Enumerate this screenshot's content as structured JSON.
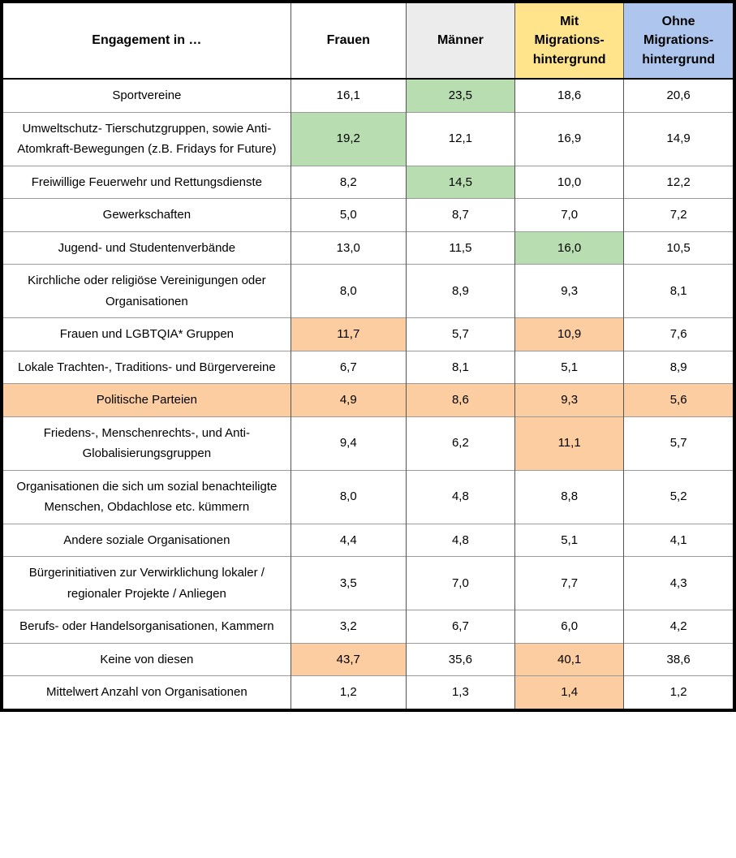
{
  "title": "Engagement in …",
  "colors": {
    "header_gray": "#ececec",
    "header_yellow": "#ffe48c",
    "header_blue": "#aec6ed",
    "highlight_green": "#b8ddb0",
    "highlight_orange": "#fbcda0",
    "border_outer": "#000000",
    "border_vertical": "#545454",
    "border_horizontal": "#9b9b9b"
  },
  "table": {
    "headers": [
      {
        "id": "engagement",
        "label": "Engagement in …",
        "bg": "#ffffff"
      },
      {
        "id": "frauen",
        "label": "Frauen",
        "bg": "#ffffff"
      },
      {
        "id": "maenner",
        "label": "Männer",
        "bg": "#ececec"
      },
      {
        "id": "mit-migrationshintergrund",
        "label": "Mit\nMigrations-\nhintergrund",
        "bg": "#ffe48c"
      },
      {
        "id": "ohne-migrationshintergrund",
        "label": "Ohne\nMigrations-\nhintergrund",
        "bg": "#aec6ed"
      }
    ]
  },
  "chart_data": {
    "type": "table",
    "title": "Engagement in …",
    "columns": [
      "Frauen",
      "Männer",
      "Mit Migrationshintergrund",
      "Ohne Migrationshintergrund"
    ],
    "highlight_colors": {
      "green": "#b8ddb0",
      "orange": "#fbcda0"
    },
    "rows": [
      {
        "label": "Sportvereine",
        "values": [
          "16,1",
          "23,5",
          "18,6",
          "20,6"
        ],
        "label_highlight": "",
        "value_highlights": [
          "",
          "green",
          "",
          ""
        ]
      },
      {
        "label": "Umweltschutz- Tierschutzgruppen, sowie Anti-Atomkraft-Bewegungen (z.B. Fridays for Future)",
        "values": [
          "19,2",
          "12,1",
          "16,9",
          "14,9"
        ],
        "label_highlight": "",
        "value_highlights": [
          "green",
          "",
          "",
          ""
        ]
      },
      {
        "label": "Freiwillige Feuerwehr und Rettungsdienste",
        "values": [
          "8,2",
          "14,5",
          "10,0",
          "12,2"
        ],
        "label_highlight": "",
        "value_highlights": [
          "",
          "green",
          "",
          ""
        ]
      },
      {
        "label": "Gewerkschaften",
        "values": [
          "5,0",
          "8,7",
          "7,0",
          "7,2"
        ],
        "label_highlight": "",
        "value_highlights": [
          "",
          "",
          "",
          ""
        ]
      },
      {
        "label": "Jugend- und Studentenverbände",
        "values": [
          "13,0",
          "11,5",
          "16,0",
          "10,5"
        ],
        "label_highlight": "",
        "value_highlights": [
          "",
          "",
          "green",
          ""
        ]
      },
      {
        "label": "Kirchliche oder religiöse Vereinigungen oder Organisationen",
        "values": [
          "8,0",
          "8,9",
          "9,3",
          "8,1"
        ],
        "label_highlight": "",
        "value_highlights": [
          "",
          "",
          "",
          ""
        ]
      },
      {
        "label": "Frauen und LGBTQIA* Gruppen",
        "values": [
          "11,7",
          "5,7",
          "10,9",
          "7,6"
        ],
        "label_highlight": "",
        "value_highlights": [
          "orange",
          "",
          "orange",
          ""
        ]
      },
      {
        "label": "Lokale Trachten-, Traditions- und Bürgervereine",
        "values": [
          "6,7",
          "8,1",
          "5,1",
          "8,9"
        ],
        "label_highlight": "",
        "value_highlights": [
          "",
          "",
          "",
          ""
        ]
      },
      {
        "label": "Politische Parteien",
        "values": [
          "4,9",
          "8,6",
          "9,3",
          "5,6"
        ],
        "label_highlight": "orange",
        "value_highlights": [
          "orange",
          "orange",
          "orange",
          "orange"
        ]
      },
      {
        "label": "Friedens-, Menschenrechts-, und Anti-Globalisierungsgruppen",
        "values": [
          "9,4",
          "6,2",
          "11,1",
          "5,7"
        ],
        "label_highlight": "",
        "value_highlights": [
          "",
          "",
          "orange",
          ""
        ]
      },
      {
        "label": "Organisationen die sich um sozial benachteiligte Menschen, Obdachlose etc. kümmern",
        "values": [
          "8,0",
          "4,8",
          "8,8",
          "5,2"
        ],
        "label_highlight": "",
        "value_highlights": [
          "",
          "",
          "",
          ""
        ]
      },
      {
        "label": "Andere soziale Organisationen",
        "values": [
          "4,4",
          "4,8",
          "5,1",
          "4,1"
        ],
        "label_highlight": "",
        "value_highlights": [
          "",
          "",
          "",
          ""
        ]
      },
      {
        "label": "Bürgerinitiativen zur Verwirklichung lokaler / regionaler Projekte / Anliegen",
        "values": [
          "3,5",
          "7,0",
          "7,7",
          "4,3"
        ],
        "label_highlight": "",
        "value_highlights": [
          "",
          "",
          "",
          ""
        ]
      },
      {
        "label": "Berufs- oder Handelsorganisationen, Kammern",
        "values": [
          "3,2",
          "6,7",
          "6,0",
          "4,2"
        ],
        "label_highlight": "",
        "value_highlights": [
          "",
          "",
          "",
          ""
        ]
      },
      {
        "label": "Keine von diesen",
        "values": [
          "43,7",
          "35,6",
          "40,1",
          "38,6"
        ],
        "label_highlight": "",
        "value_highlights": [
          "orange",
          "",
          "orange",
          ""
        ]
      },
      {
        "label": "Mittelwert Anzahl von Organisationen",
        "values": [
          "1,2",
          "1,3",
          "1,4",
          "1,2"
        ],
        "label_highlight": "",
        "value_highlights": [
          "",
          "",
          "orange",
          ""
        ]
      }
    ]
  }
}
